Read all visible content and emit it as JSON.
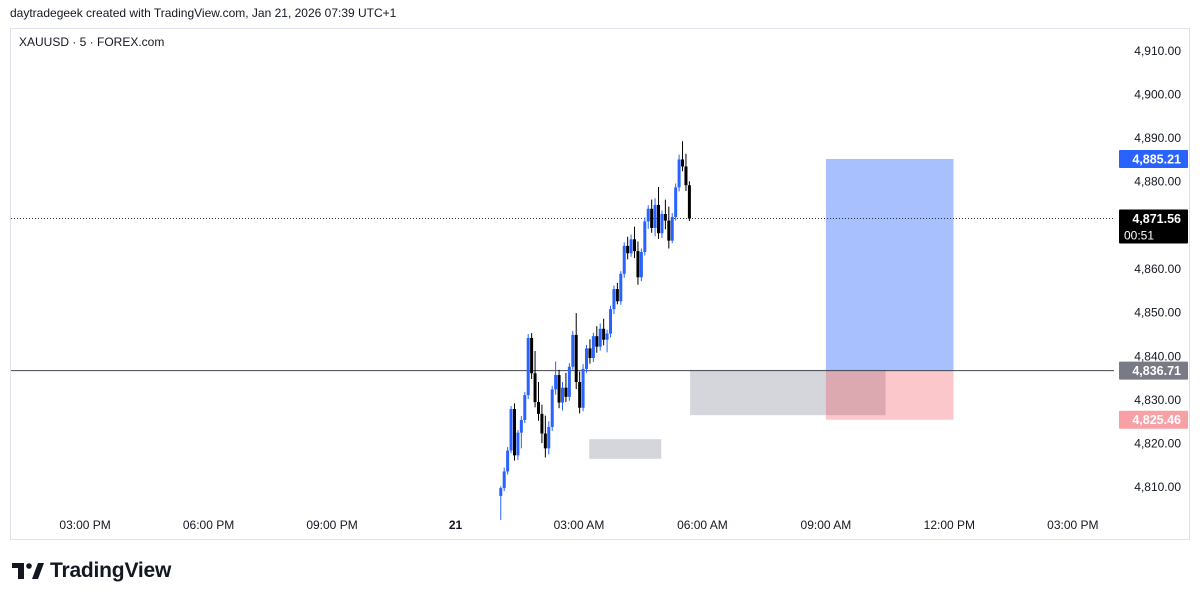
{
  "header": {
    "credit": "daytradegeek created with TradingView.com, Jan 21, 2026 07:39 UTC+1"
  },
  "brand": {
    "logo_icon": "tradingview-logo-icon",
    "name": "TradingView"
  },
  "chart_data": {
    "type": "candlestick",
    "symbol_label": "XAUUSD · 5 · FOREX.com",
    "y_axis": {
      "ticks": [
        "4,810.00",
        "4,820.00",
        "4,830.00",
        "4,840.00",
        "4,850.00",
        "4,860.00",
        "4,870.00",
        "4,880.00",
        "4,890.00",
        "4,900.00",
        "4,910.00"
      ],
      "tick_values": [
        4810,
        4820,
        4830,
        4840,
        4850,
        4860,
        4870,
        4880,
        4890,
        4900,
        4910
      ],
      "range": [
        4805,
        4915
      ],
      "side": "right"
    },
    "x_axis": {
      "ticks": [
        "03:00 PM",
        "06:00 PM",
        "09:00 PM",
        "21",
        "03:00 AM",
        "06:00 AM",
        "09:00 AM",
        "12:00 PM",
        "03:00 PM"
      ],
      "tick_hours": [
        15,
        18,
        21,
        24,
        27,
        30,
        33,
        36,
        39
      ],
      "range_hours": [
        13.2,
        40.0
      ],
      "bold_tick": "21"
    },
    "current_price": {
      "value": 4871.56,
      "label": "4,871.56",
      "countdown": "00:51",
      "color": "#000000"
    },
    "horizontal_line": {
      "value": 4836.71,
      "label": "4,836.71",
      "color": "#787b86"
    },
    "position": {
      "type": "long",
      "entry": 4836.71,
      "target": 4885.21,
      "stop": 4825.46,
      "target_label": "4,885.21",
      "stop_label": "4,825.46",
      "start_hour": 33.0,
      "end_hour": 36.1,
      "profit_color": "#2962ff",
      "loss_color": "#f23645"
    },
    "zones": [
      {
        "from_hour": 27.25,
        "to_hour": 29.0,
        "top": 4821.0,
        "bottom": 4816.5,
        "color": "#b2b5be"
      },
      {
        "from_hour": 29.7,
        "to_hour": 34.45,
        "top": 4836.9,
        "bottom": 4826.5,
        "color": "#b2b5be"
      }
    ],
    "candles": {
      "up_color": "#2962ff",
      "down_color": "#000000",
      "start_hour": 25.1,
      "interval_hours": 0.08333,
      "ohlc": [
        [
          4808.0,
          4810.2,
          4802.5,
          4809.8
        ],
        [
          4809.8,
          4814.5,
          4809.1,
          4813.6
        ],
        [
          4813.6,
          4819.2,
          4812.9,
          4818.4
        ],
        [
          4818.4,
          4828.6,
          4817.8,
          4827.9
        ],
        [
          4827.9,
          4829.2,
          4816.1,
          4817.3
        ],
        [
          4817.3,
          4823.1,
          4816.2,
          4822.5
        ],
        [
          4822.5,
          4826.3,
          4818.9,
          4825.4
        ],
        [
          4825.4,
          4831.8,
          4824.7,
          4831.1
        ],
        [
          4831.1,
          4845.1,
          4830.2,
          4844.2
        ],
        [
          4844.2,
          4845.3,
          4834.8,
          4836.1
        ],
        [
          4836.1,
          4841.2,
          4828.3,
          4829.5
        ],
        [
          4829.5,
          4834.1,
          4825.2,
          4826.8
        ],
        [
          4826.8,
          4828.9,
          4820.1,
          4822.3
        ],
        [
          4822.3,
          4826.4,
          4816.8,
          4818.9
        ],
        [
          4818.9,
          4825.1,
          4817.5,
          4823.8
        ],
        [
          4823.8,
          4833.2,
          4822.9,
          4832.4
        ],
        [
          4832.4,
          4838.8,
          4831.2,
          4835.7
        ],
        [
          4835.7,
          4836.9,
          4828.1,
          4829.4
        ],
        [
          4829.4,
          4834.1,
          4827.6,
          4832.8
        ],
        [
          4832.8,
          4836.2,
          4829.5,
          4830.7
        ],
        [
          4830.7,
          4838.4,
          4829.8,
          4837.6
        ],
        [
          4837.6,
          4845.8,
          4836.9,
          4844.9
        ],
        [
          4844.9,
          4849.9,
          4832.5,
          4834.1
        ],
        [
          4834.1,
          4836.5,
          4826.9,
          4828.2
        ],
        [
          4828.2,
          4838.2,
          4827.4,
          4837.1
        ],
        [
          4837.1,
          4842.6,
          4836.2,
          4841.8
        ],
        [
          4841.8,
          4843.9,
          4838.3,
          4839.6
        ],
        [
          4839.6,
          4845.4,
          4838.7,
          4844.6
        ],
        [
          4844.6,
          4846.9,
          4840.8,
          4842.2
        ],
        [
          4842.2,
          4847.5,
          4841.3,
          4846.3
        ],
        [
          4846.3,
          4848.6,
          4842.5,
          4843.8
        ],
        [
          4843.8,
          4846.1,
          4840.9,
          4845.2
        ],
        [
          4845.2,
          4851.6,
          4844.3,
          4850.8
        ],
        [
          4850.8,
          4856.2,
          4849.7,
          4855.4
        ],
        [
          4855.4,
          4856.8,
          4851.9,
          4852.6
        ],
        [
          4852.6,
          4859.5,
          4851.8,
          4858.9
        ],
        [
          4858.9,
          4866.1,
          4858.0,
          4865.3
        ],
        [
          4865.3,
          4867.4,
          4862.2,
          4863.6
        ],
        [
          4863.6,
          4867.9,
          4862.8,
          4866.8
        ],
        [
          4866.8,
          4869.7,
          4862.5,
          4864.1
        ],
        [
          4864.1,
          4866.3,
          4856.4,
          4858.1
        ],
        [
          4858.1,
          4864.7,
          4857.2,
          4863.9
        ],
        [
          4863.9,
          4871.8,
          4863.1,
          4870.9
        ],
        [
          4870.9,
          4874.6,
          4869.2,
          4873.8
        ],
        [
          4873.8,
          4875.9,
          4868.3,
          4869.4
        ],
        [
          4869.4,
          4876.2,
          4867.5,
          4874.7
        ],
        [
          4874.7,
          4878.8,
          4866.9,
          4868.2
        ],
        [
          4868.2,
          4873.4,
          4867.1,
          4872.6
        ],
        [
          4872.6,
          4875.9,
          4869.1,
          4871.1
        ],
        [
          4871.1,
          4874.3,
          4864.7,
          4866.5
        ],
        [
          4866.5,
          4872.8,
          4865.9,
          4871.9
        ],
        [
          4871.9,
          4879.6,
          4871.1,
          4878.7
        ],
        [
          4878.7,
          4886.2,
          4877.8,
          4885.1
        ],
        [
          4885.1,
          4889.3,
          4882.4,
          4883.5
        ],
        [
          4883.5,
          4886.4,
          4877.9,
          4879.2
        ],
        [
          4879.2,
          4880.1,
          4871.0,
          4871.56
        ]
      ]
    }
  }
}
